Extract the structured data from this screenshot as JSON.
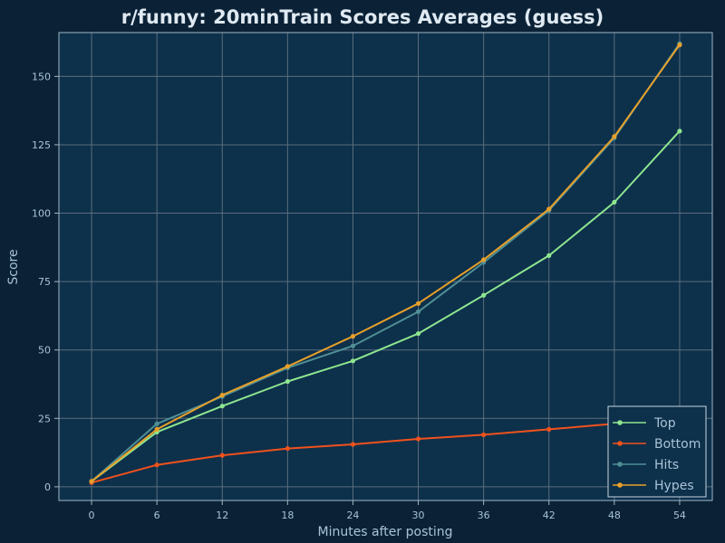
{
  "colors": {
    "background": "#0b2236",
    "plot_background": "#0d304b",
    "grid": "#5c6e7d",
    "axis": "#9fb6c8",
    "text": "#a9c3d6",
    "title": "#dfe9f2"
  },
  "chart_data": {
    "type": "line",
    "title": "r/funny: 20minTrain Scores Averages (guess)",
    "xlabel": "Minutes after posting",
    "ylabel": "Score",
    "x": [
      0,
      6,
      12,
      18,
      24,
      30,
      36,
      42,
      48,
      54
    ],
    "xlim": [
      -3,
      57
    ],
    "ylim": [
      -5,
      166
    ],
    "xticks": [
      0,
      6,
      12,
      18,
      24,
      30,
      36,
      42,
      48,
      54
    ],
    "yticks": [
      0,
      25,
      50,
      75,
      100,
      125,
      150
    ],
    "grid": true,
    "legend_position": "bottom-right",
    "series": [
      {
        "name": "Top",
        "color": "#8ee68f",
        "values": [
          2,
          20,
          29.5,
          38.5,
          46,
          56,
          70,
          84.5,
          104,
          130
        ]
      },
      {
        "name": "Bottom",
        "color": "#f0521c",
        "values": [
          1.5,
          8,
          11.5,
          14,
          15.5,
          17.5,
          19,
          21,
          23,
          26
        ]
      },
      {
        "name": "Hits",
        "color": "#4f8f94",
        "values": [
          2,
          23,
          33,
          43.5,
          51.5,
          64,
          82,
          101,
          127.5,
          162
        ]
      },
      {
        "name": "Hypes",
        "color": "#e8a02a",
        "values": [
          2,
          21,
          33.5,
          44,
          55,
          67,
          83,
          101.5,
          128,
          161.5
        ]
      }
    ]
  }
}
